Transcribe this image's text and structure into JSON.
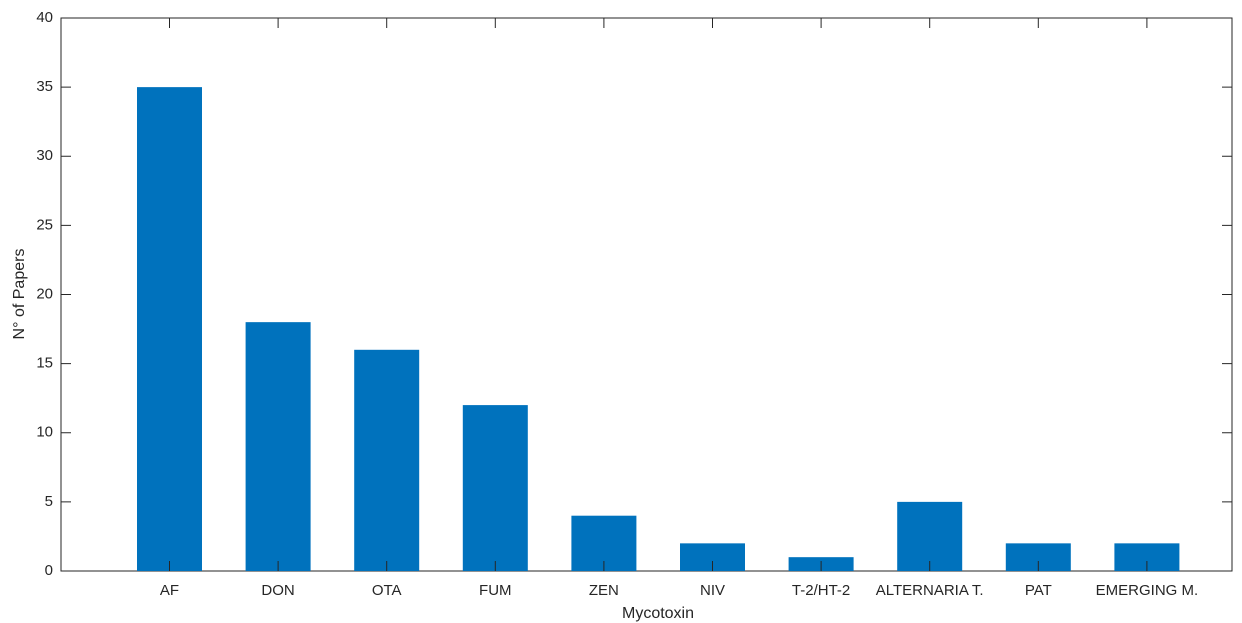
{
  "chart_data": {
    "type": "bar",
    "xlabel": "Mycotoxin",
    "ylabel": "N° of Papers",
    "categories": [
      "AF",
      "DON",
      "OTA",
      "FUM",
      "ZEN",
      "NIV",
      "T-2/HT-2",
      "ALTERNARIA T.",
      "PAT",
      "EMERGING M."
    ],
    "values": [
      35,
      18,
      16,
      12,
      4,
      2,
      1,
      5,
      2,
      2
    ],
    "color": "#0072bd",
    "ylim": [
      0,
      40
    ],
    "yticks": [
      0,
      5,
      10,
      15,
      20,
      25,
      30,
      35,
      40
    ],
    "grid": false
  }
}
